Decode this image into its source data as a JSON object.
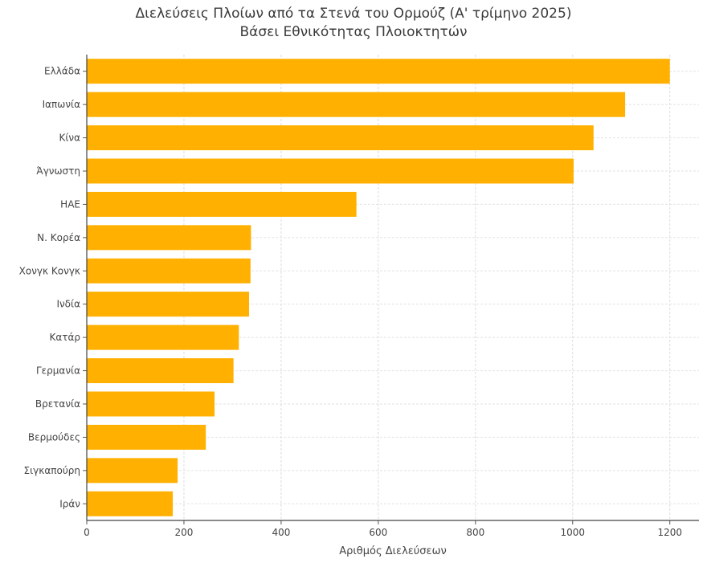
{
  "chart_data": {
    "type": "bar",
    "orientation": "horizontal",
    "title": "Διελεύσεις Πλοίων από τα Στενά του Ορμούζ (Α' τρίμηνο 2025)",
    "subtitle": "Βάσει Εθνικότητας Πλοιοκτητών",
    "xlabel": "Αριθμός Διελεύσεων",
    "ylabel": "",
    "categories": [
      "Ελλάδα",
      "Ιαπωνία",
      "Κίνα",
      "Άγνωστη",
      "ΗΑΕ",
      "Ν. Κορέα",
      "Χονγκ Κονγκ",
      "Ινδία",
      "Κατάρ",
      "Γερμανία",
      "Βρετανία",
      "Βερμούδες",
      "Σιγκαπούρη",
      "Ιράν"
    ],
    "values": [
      1200,
      1108,
      1043,
      1002,
      555,
      338,
      337,
      334,
      313,
      302,
      263,
      245,
      187,
      177
    ],
    "xlim": [
      0,
      1260
    ],
    "xticks": [
      "0",
      "200",
      "400",
      "600",
      "800",
      "1000",
      "1200"
    ],
    "grid": true,
    "bar_color": "#FFB000"
  }
}
